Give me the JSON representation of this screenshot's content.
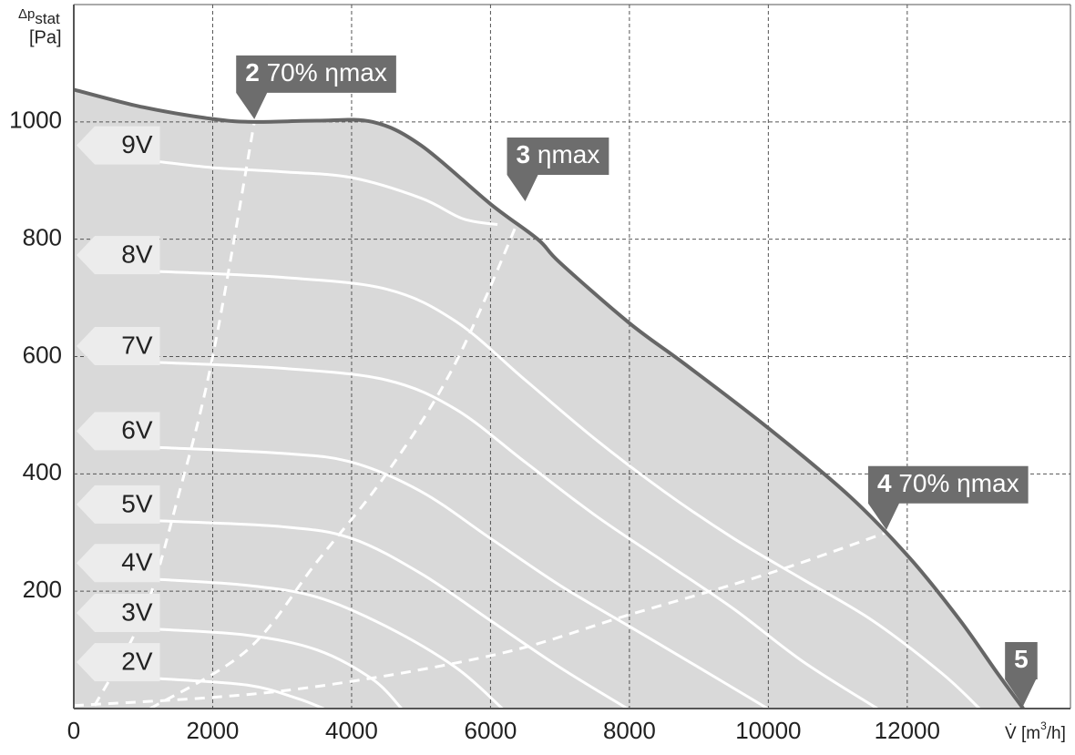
{
  "chart_data": {
    "type": "line",
    "xlim": [
      0,
      14350
    ],
    "ylim": [
      0,
      1200
    ],
    "xticks": [
      0,
      2000,
      4000,
      6000,
      8000,
      10000,
      12000
    ],
    "yticks": [
      200,
      400,
      600,
      800,
      1000
    ],
    "grid": true,
    "y_label": {
      "symbol": "Δp",
      "subscript": "stat",
      "unit": "[Pa]"
    },
    "x_label": {
      "symbol": "V̇ [m",
      "superscript": "3",
      "unit": "/h]"
    },
    "max_curve": {
      "color": "#666666",
      "x": [
        0,
        1000,
        2000,
        2600,
        3500,
        4300,
        5000,
        6000,
        6680,
        7000,
        8000,
        8800,
        10000,
        11170,
        12040,
        12750,
        13300,
        13670
      ],
      "values": [
        1055,
        1025,
        1005,
        1000,
        1002,
        1000,
        960,
        860,
        800,
        760,
        657,
        587,
        478,
        362,
        256,
        152,
        60,
        0
      ]
    },
    "series": [
      {
        "name": "9V",
        "color": "#ffffff",
        "x": [
          1240,
          2000,
          3000,
          4000,
          5000,
          5600,
          6100
        ],
        "values": [
          932,
          922,
          915,
          905,
          870,
          835,
          825
        ]
      },
      {
        "name": "8V",
        "color": "#ffffff",
        "x": [
          1240,
          3000,
          4500,
          5500,
          6500,
          7500,
          8500,
          9500,
          10500,
          11500,
          12500,
          13040
        ],
        "values": [
          745,
          735,
          715,
          660,
          560,
          460,
          370,
          290,
          220,
          150,
          60,
          0
        ]
      },
      {
        "name": "7V",
        "color": "#ffffff",
        "x": [
          1240,
          3000,
          4500,
          5500,
          6500,
          7500,
          8500,
          9500,
          10500,
          11570
        ],
        "values": [
          590,
          580,
          560,
          510,
          420,
          330,
          250,
          170,
          80,
          0
        ]
      },
      {
        "name": "6V",
        "color": "#ffffff",
        "x": [
          1240,
          3000,
          4000,
          5000,
          6000,
          7000,
          8000,
          9000,
          9990
        ],
        "values": [
          445,
          435,
          420,
          370,
          290,
          210,
          140,
          70,
          0
        ]
      },
      {
        "name": "5V",
        "color": "#ffffff",
        "x": [
          1240,
          3000,
          4000,
          5000,
          6000,
          7000,
          7970
        ],
        "values": [
          320,
          310,
          290,
          230,
          150,
          70,
          0
        ]
      },
      {
        "name": "4V",
        "color": "#ffffff",
        "x": [
          1240,
          2500,
          3500,
          4500,
          5500,
          6170
        ],
        "values": [
          220,
          210,
          190,
          140,
          70,
          0
        ]
      },
      {
        "name": "3V",
        "color": "#ffffff",
        "x": [
          1240,
          2500,
          3500,
          4300,
          4720
        ],
        "values": [
          135,
          125,
          100,
          50,
          0
        ]
      },
      {
        "name": "2V",
        "color": "#ffffff",
        "x": [
          1240,
          2500,
          3200,
          3600
        ],
        "values": [
          51,
          40,
          18,
          0
        ]
      }
    ],
    "efficiency_lines": [
      {
        "x": [
          300,
          1000,
          1500,
          2000,
          2600
        ],
        "values": [
          5,
          160,
          360,
          600,
          1000
        ]
      },
      {
        "x": [
          1100,
          2500,
          3500,
          4500,
          5500,
          6500
        ],
        "values": [
          0,
          100,
          250,
          400,
          590,
          860
        ]
      },
      {
        "x": [
          0,
          3000,
          6000,
          8000,
          10000,
          11700
        ],
        "values": [
          5,
          30,
          90,
          160,
          230,
          300
        ]
      }
    ],
    "callouts": [
      {
        "number": "2",
        "text": "70% ηmax"
      },
      {
        "number": "3",
        "text": "ηmax"
      },
      {
        "number": "4",
        "text": "70% ηmax"
      },
      {
        "number": "5"
      }
    ]
  }
}
